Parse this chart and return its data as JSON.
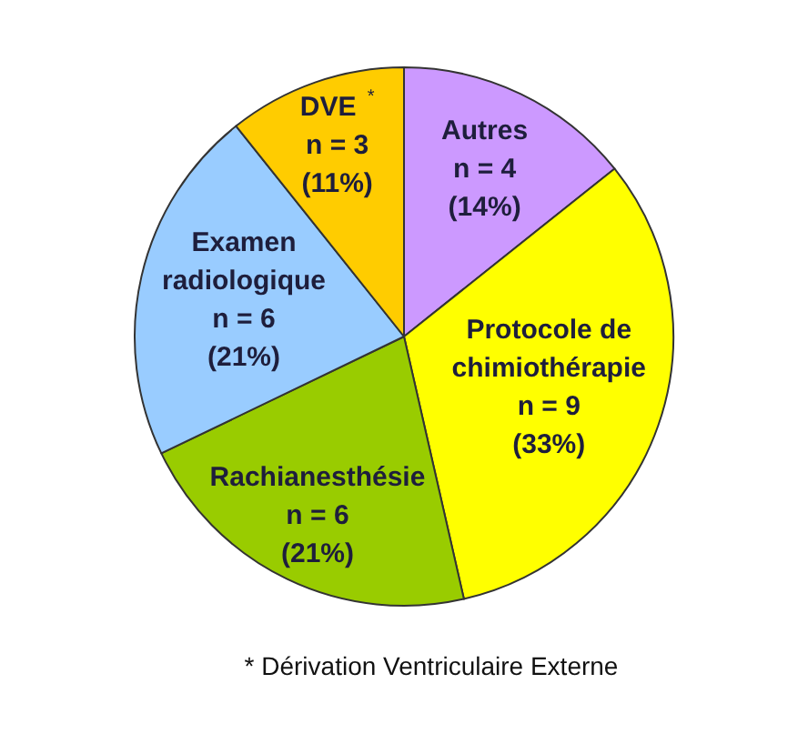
{
  "chart_data": {
    "type": "pie",
    "categories": [
      "Autres",
      "Protocole de chimiothérapie",
      "Rachianesthésie",
      "Examen radiologique",
      "DVE $^{*}$"
    ],
    "values": [
      4,
      9,
      6,
      6,
      3
    ],
    "colors": [
      "#cc99ff",
      "#ffff00",
      "#99cc00",
      "#99ccff",
      "#ffcc00"
    ],
    "value_labels": [
      "n = 4\n(14%)",
      "n = 9\n(33%)",
      "n = 6\n(21%)",
      "n = 6\n(21%)",
      "n = 3\n(11%)"
    ],
    "annotations": [
      "* Dérivation Ventriculaire Externe"
    ]
  }
}
